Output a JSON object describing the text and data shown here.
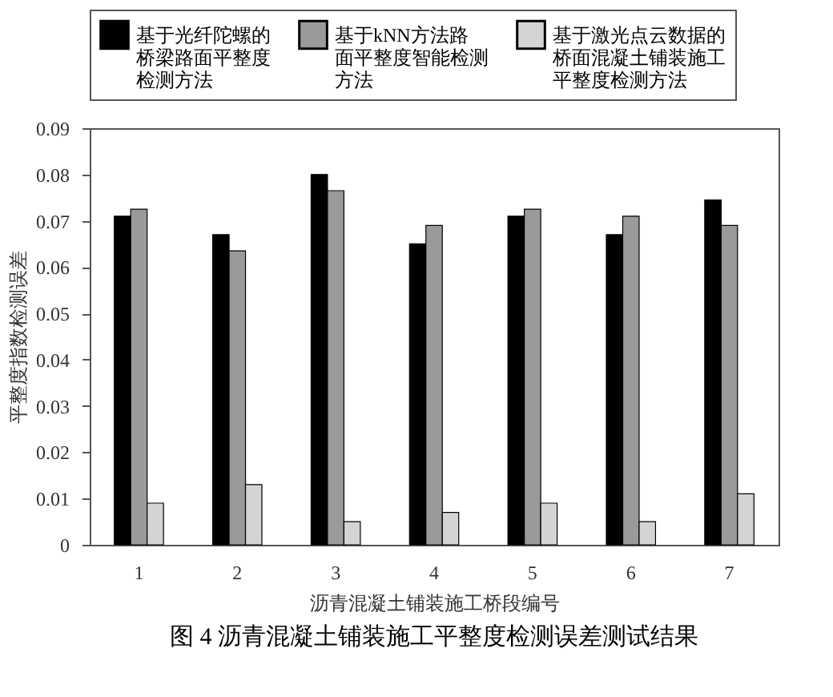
{
  "chart_data": {
    "type": "bar",
    "title": "图 4 沥青混凝土铺装施工平整度检测误差测试结果",
    "xlabel": "沥青混凝土铺装施工桥段编号",
    "ylabel": "平整度指数检测误差",
    "categories": [
      "1",
      "2",
      "3",
      "4",
      "5",
      "6",
      "7"
    ],
    "series": [
      {
        "name": "基于光纤陀螺的桥梁路面平整度检测方法",
        "color": "#000000",
        "values": [
          0.071,
          0.067,
          0.08,
          0.065,
          0.071,
          0.067,
          0.0745
        ]
      },
      {
        "name": "基于kNN方法路面平整度智能检测方法",
        "color": "#9a9a9a",
        "values": [
          0.0725,
          0.0635,
          0.0765,
          0.069,
          0.0725,
          0.071,
          0.069
        ]
      },
      {
        "name": "基于激光点云数据的桥面混凝土铺装施工平整度检测方法",
        "color": "#d4d4d4",
        "values": [
          0.009,
          0.013,
          0.005,
          0.007,
          0.009,
          0.005,
          0.011
        ]
      }
    ],
    "ylim": [
      0,
      0.09
    ],
    "yticks": [
      0,
      0.01,
      0.02,
      0.03,
      0.04,
      0.05,
      0.06,
      0.07,
      0.08,
      0.09
    ],
    "grid": false,
    "legend": "top"
  }
}
